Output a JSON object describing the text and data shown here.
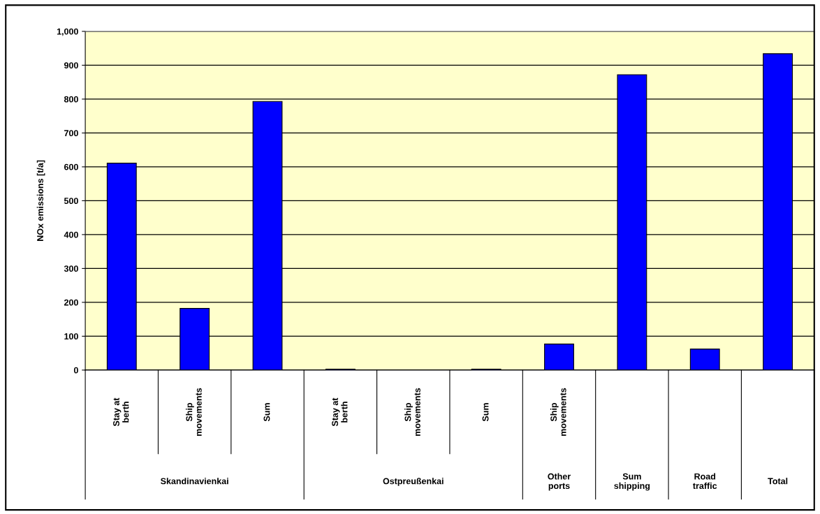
{
  "chart_data": {
    "type": "bar",
    "ylabel": "NOx emissions [t/a]",
    "categories": [
      "Stay at berth",
      "Ship movements",
      "Sum",
      "Stay at berth",
      "Ship movements",
      "Sum",
      "Ship movements",
      null,
      null,
      null
    ],
    "values": [
      611,
      182,
      793,
      3,
      0,
      3,
      77,
      872,
      62,
      934
    ],
    "color": "#0000ff",
    "ylim": [
      0,
      1000
    ],
    "yticks": [
      0,
      100,
      200,
      300,
      400,
      500,
      600,
      700,
      800,
      900,
      {
        "value": 1000,
        "label": "1,000"
      }
    ],
    "grid": "y",
    "annotations": [
      "Skandinavienkai",
      "Ostpreußenkai",
      "Other ports",
      "Sum shipping",
      "Road traffic",
      "Total"
    ]
  }
}
